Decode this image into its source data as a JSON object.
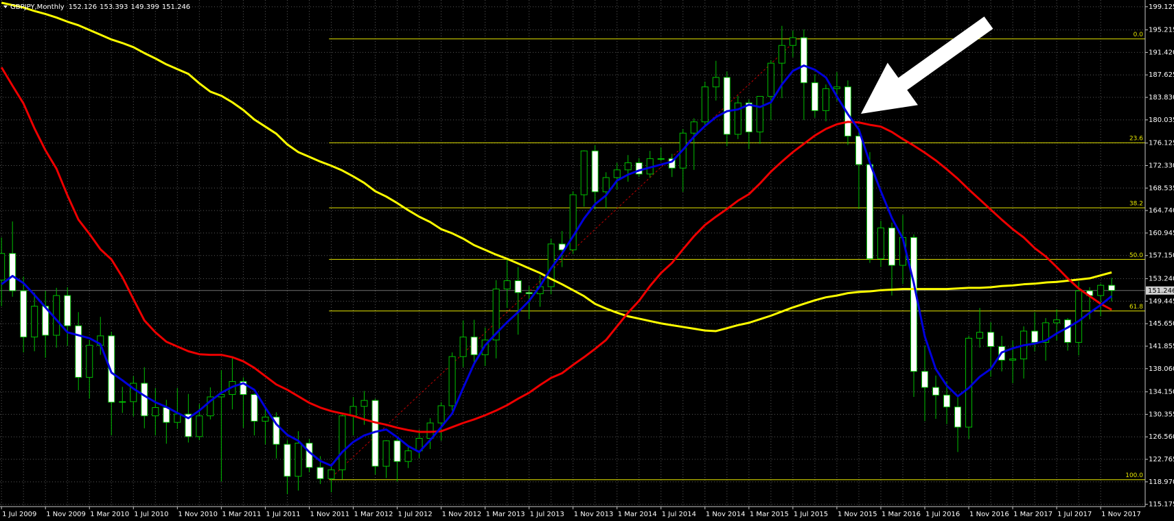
{
  "chart_data": {
    "type": "candlestick",
    "title": "GBPJPY,Monthly",
    "categories": [
      "1 Jul 2009",
      null,
      null,
      null,
      "1 Nov 2009",
      null,
      null,
      null,
      "1 Mar 2010",
      null,
      null,
      null,
      "1 Jul 2010",
      null,
      null,
      null,
      "1 Nov 2010",
      null,
      null,
      null,
      "1 Mar 2011",
      null,
      null,
      null,
      "1 Jul 2011",
      null,
      null,
      null,
      "1 Nov 2011",
      null,
      null,
      null,
      "1 Mar 2012",
      null,
      null,
      null,
      "1 Jul 2012",
      null,
      null,
      null,
      "1 Nov 2012",
      null,
      null,
      null,
      "1 Mar 2013",
      null,
      null,
      null,
      "1 Jul 2013",
      null,
      null,
      null,
      "1 Nov 2013",
      null,
      null,
      null,
      "1 Mar 2014",
      null,
      null,
      null,
      "1 Jul 2014",
      null,
      null,
      null,
      "1 Nov 2014",
      null,
      null,
      null,
      "1 Mar 2015",
      null,
      null,
      null,
      "1 Jul 2015",
      null,
      null,
      null,
      "1 Nov 2015",
      null,
      null,
      null,
      "1 Mar 2016",
      null,
      null,
      null,
      "1 Jul 2016",
      null,
      null,
      null,
      "1 Nov 2016",
      null,
      null,
      null,
      "1 Mar 2017",
      null,
      null,
      null,
      "1 Jul 2017",
      null,
      null,
      null,
      "1 Nov 2017",
      null
    ],
    "open": [
      153.0,
      157.5,
      151.2,
      143.4,
      148.6,
      143.7,
      150.4,
      145.3,
      136.6,
      142.0,
      143.6,
      132.4,
      132.5,
      135.6,
      130.1,
      131.5,
      129.0,
      130.4,
      126.6,
      130.1,
      133.3,
      133.7,
      135.9,
      133.7,
      129.2,
      129.9,
      125.3,
      119.9,
      125.5,
      121.4,
      119.5,
      121.0,
      130.1,
      131.7,
      132.7,
      121.6,
      125.9,
      122.4,
      124.2,
      126.3,
      128.9,
      131.8,
      140.1,
      143.4,
      140.4,
      142.9,
      151.5,
      152.9,
      150.9,
      150.7,
      151.9,
      159.1,
      158.1,
      167.4,
      174.8,
      167.9,
      170.3,
      171.6,
      172.8,
      170.9,
      173.5,
      173.5,
      171.9,
      177.8,
      179.7,
      185.6,
      187.2,
      177.6,
      182.9,
      178.0,
      184.0,
      189.6,
      192.6,
      193.9,
      186.3,
      181.6,
      185.3,
      185.6,
      177.3,
      172.5,
      156.6,
      161.8,
      155.5,
      160.2,
      137.6,
      134.9,
      133.6,
      131.6,
      128.2,
      143.2,
      144.2,
      141.8,
      139.5,
      139.7,
      144.4,
      142.5,
      145.8,
      146.3,
      142.5,
      151.2,
      150.4,
      152.126
    ],
    "high": [
      160.2,
      162.9,
      153.6,
      150.9,
      151.2,
      151.7,
      151.8,
      147.6,
      142.9,
      146.8,
      144.3,
      135.0,
      136.8,
      138.3,
      134.8,
      132.8,
      134.8,
      133.8,
      132.1,
      134.9,
      137.8,
      140.0,
      136.6,
      133.9,
      131.6,
      130.7,
      126.0,
      127.5,
      126.2,
      123.3,
      121.9,
      130.3,
      133.3,
      134.3,
      133.0,
      126.0,
      126.3,
      125.0,
      127.8,
      129.7,
      132.4,
      140.8,
      146.2,
      146.3,
      145.0,
      153.0,
      156.5,
      155.2,
      152.0,
      153.8,
      160.0,
      161.3,
      168.0,
      174.9,
      175.8,
      171.2,
      172.8,
      174.1,
      173.6,
      174.8,
      175.4,
      174.3,
      178.5,
      180.3,
      186.5,
      190.0,
      188.2,
      184.1,
      183.5,
      184.0,
      190.1,
      195.9,
      195.1,
      195.3,
      187.7,
      186.0,
      188.1,
      186.7,
      178.0,
      174.6,
      163.0,
      162.7,
      164.0,
      160.7,
      142.0,
      136.9,
      135.9,
      133.4,
      143.6,
      148.3,
      145.9,
      143.6,
      142.8,
      145.2,
      147.6,
      146.6,
      148.1,
      146.6,
      152.8,
      151.8,
      152.4,
      153.393
    ],
    "low": [
      148.6,
      150.2,
      140.8,
      141.0,
      139.9,
      141.6,
      141.9,
      134.4,
      133.0,
      140.4,
      126.8,
      130.6,
      130.0,
      128.0,
      126.8,
      125.4,
      127.9,
      125.6,
      126.0,
      129.5,
      119.0,
      131.2,
      128.1,
      126.8,
      125.3,
      122.9,
      116.9,
      117.5,
      120.6,
      118.6,
      117.2,
      119.4,
      126.8,
      128.6,
      120.2,
      119.6,
      119.0,
      121.3,
      123.0,
      124.5,
      125.9,
      131.0,
      138.3,
      138.8,
      138.5,
      139.8,
      148.3,
      143.8,
      146.4,
      148.5,
      150.6,
      155.2,
      157.4,
      165.4,
      164.9,
      165.1,
      168.3,
      169.6,
      170.4,
      170.3,
      173.1,
      170.4,
      167.9,
      171.6,
      179.1,
      183.3,
      175.6,
      176.8,
      175.1,
      176.0,
      180.0,
      183.7,
      190.6,
      180.0,
      180.4,
      179.8,
      183.2,
      175.8,
      165.0,
      155.9,
      155.2,
      150.4,
      152.3,
      133.3,
      129.2,
      129.6,
      128.7,
      124.0,
      126.2,
      141.6,
      136.7,
      137.6,
      135.6,
      136.4,
      141.0,
      139.4,
      142.8,
      141.1,
      140.3,
      146.4,
      146.9,
      149.399
    ],
    "close": [
      157.5,
      151.2,
      143.4,
      148.6,
      143.7,
      150.4,
      145.3,
      136.6,
      142.0,
      143.6,
      132.4,
      132.5,
      135.6,
      130.1,
      131.5,
      129.0,
      130.4,
      126.6,
      130.1,
      133.3,
      133.7,
      135.9,
      133.7,
      129.2,
      129.9,
      125.3,
      119.9,
      125.5,
      121.4,
      119.5,
      121.0,
      130.1,
      131.7,
      132.7,
      121.6,
      125.9,
      122.4,
      124.2,
      126.3,
      128.9,
      131.8,
      140.1,
      143.4,
      140.4,
      142.9,
      151.5,
      152.9,
      150.9,
      150.7,
      151.9,
      159.1,
      158.1,
      167.4,
      174.8,
      167.9,
      170.3,
      171.6,
      172.8,
      170.9,
      173.5,
      173.5,
      171.9,
      177.8,
      179.7,
      185.6,
      187.2,
      177.6,
      182.9,
      178.0,
      184.0,
      189.6,
      192.6,
      193.9,
      186.3,
      181.6,
      185.3,
      185.6,
      177.3,
      172.5,
      156.6,
      161.8,
      155.5,
      160.2,
      137.6,
      134.9,
      133.6,
      131.6,
      128.2,
      143.2,
      144.2,
      141.8,
      139.5,
      139.7,
      144.4,
      142.5,
      145.8,
      146.3,
      142.5,
      151.2,
      150.4,
      152.126,
      151.246
    ],
    "bull_color": "#000000",
    "bear_color": "#ffffff",
    "wick_color": "#00c000",
    "overlays": [
      {
        "color": "#ffff00",
        "values": [
          199.8,
          199.4,
          199.0,
          198.4,
          197.9,
          197.3,
          196.6,
          196.0,
          195.2,
          194.4,
          193.6,
          193.0,
          192.3,
          191.3,
          190.4,
          189.4,
          188.6,
          187.8,
          186.2,
          184.8,
          184.1,
          183.0,
          181.7,
          180.1,
          178.9,
          177.7,
          175.9,
          174.6,
          173.8,
          173.0,
          172.3,
          171.5,
          170.5,
          169.4,
          168.0,
          167.1,
          166.0,
          164.8,
          163.7,
          162.8,
          161.6,
          160.9,
          160.0,
          158.9,
          158.1,
          157.3,
          156.6,
          155.8,
          155.0,
          154.2,
          153.2,
          152.3,
          151.3,
          150.3,
          149.0,
          148.2,
          147.5,
          146.9,
          146.5,
          146.1,
          145.7,
          145.4,
          145.1,
          144.8,
          144.5,
          144.4,
          144.9,
          145.4,
          145.8,
          146.4,
          147.0,
          147.7,
          148.4,
          149.0,
          149.6,
          150.1,
          150.4,
          150.8,
          151.0,
          151.1,
          151.3,
          151.4,
          151.5,
          151.5,
          151.5,
          151.5,
          151.5,
          151.6,
          151.7,
          151.7,
          151.8,
          152.0,
          152.1,
          152.3,
          152.4,
          152.6,
          152.7,
          152.9,
          153.1,
          153.3,
          153.8,
          154.3
        ]
      },
      {
        "color": "#ee0000",
        "values": [
          188.9,
          185.8,
          182.8,
          178.6,
          174.9,
          171.8,
          167.3,
          163.2,
          160.8,
          158.2,
          156.5,
          153.5,
          149.8,
          146.2,
          144.2,
          142.6,
          141.8,
          141.0,
          140.5,
          140.4,
          140.4,
          140.0,
          139.3,
          138.2,
          136.8,
          135.4,
          134.5,
          133.4,
          132.3,
          131.5,
          130.9,
          130.5,
          130.1,
          129.5,
          129.0,
          128.6,
          128.1,
          127.7,
          127.4,
          127.4,
          127.5,
          128.2,
          128.9,
          129.5,
          130.2,
          131.0,
          131.9,
          133.0,
          134.0,
          135.3,
          136.5,
          137.3,
          138.7,
          140.0,
          141.4,
          142.9,
          145.2,
          147.5,
          149.5,
          152.0,
          154.2,
          155.9,
          158.2,
          160.4,
          162.3,
          163.7,
          165.0,
          166.4,
          167.5,
          169.3,
          171.3,
          173.0,
          174.6,
          176.0,
          177.4,
          178.5,
          179.3,
          179.7,
          179.6,
          179.2,
          178.9,
          178.0,
          176.8,
          175.7,
          174.5,
          173.2,
          171.7,
          170.1,
          168.3,
          166.6,
          164.9,
          163.2,
          161.6,
          160.2,
          158.4,
          157.0,
          155.2,
          153.3,
          151.6,
          150.3,
          149.0,
          148.0
        ]
      },
      {
        "color": "#0000dd",
        "values": [
          152.3,
          153.7,
          152.5,
          150.5,
          148.4,
          146.3,
          144.2,
          143.7,
          143.2,
          142.2,
          137.4,
          136.1,
          134.7,
          133.5,
          132.4,
          131.6,
          130.6,
          129.7,
          131.0,
          132.6,
          134.0,
          135.0,
          135.6,
          134.5,
          131.5,
          128.7,
          126.9,
          125.9,
          124.0,
          122.5,
          121.7,
          124.0,
          125.7,
          126.8,
          127.4,
          127.8,
          126.5,
          125.0,
          124.0,
          126.0,
          128.2,
          130.5,
          134.8,
          138.9,
          142.0,
          144.0,
          145.9,
          147.6,
          149.5,
          152.0,
          155.0,
          157.5,
          160.4,
          163.4,
          165.8,
          167.3,
          169.8,
          170.8,
          171.5,
          172.0,
          172.5,
          173.0,
          175.0,
          177.2,
          179.0,
          180.5,
          181.5,
          181.8,
          182.6,
          182.2,
          183.0,
          186.0,
          188.3,
          189.2,
          188.5,
          187.2,
          184.0,
          181.0,
          178.4,
          172.8,
          168.0,
          163.5,
          160.0,
          152.5,
          143.5,
          138.0,
          135.2,
          133.4,
          134.8,
          136.7,
          138.0,
          140.8,
          141.5,
          142.0,
          142.3,
          142.8,
          144.0,
          145.0,
          146.1,
          147.5,
          148.8,
          150.3
        ]
      }
    ],
    "fibonacci": {
      "color": "#e6e600",
      "levels": [
        {
          "label": "0.0",
          "value": 193.7
        },
        {
          "label": "23.6",
          "value": 176.18
        },
        {
          "label": "38.2",
          "value": 165.2
        },
        {
          "label": "50.0",
          "value": 156.5
        },
        {
          "label": "61.8",
          "value": 147.8
        },
        {
          "label": "100.0",
          "value": 119.33
        }
      ]
    },
    "ylim": [
      114.79,
      200.26
    ],
    "yticks": [
      199.125,
      195.215,
      {
        "value": 191.42,
        "label": "191.420"
      },
      187.625,
      {
        "value": 183.83,
        "label": "183.830"
      },
      180.035,
      176.125,
      {
        "value": 172.33,
        "label": "172.330"
      },
      168.535,
      {
        "value": 164.74,
        "label": "164.740"
      },
      160.945,
      {
        "value": 157.15,
        "label": "157.150"
      },
      {
        "value": 153.24,
        "label": "153.240"
      },
      149.445,
      {
        "value": 145.65,
        "label": "145.650"
      },
      141.855,
      {
        "value": 138.06,
        "label": "138.060"
      },
      {
        "value": 134.15,
        "label": "134.150"
      },
      130.355,
      {
        "value": 126.56,
        "label": "126.560"
      },
      122.765,
      {
        "value": 118.97,
        "label": "118.970"
      },
      115.175
    ],
    "grid": true
  }
}
